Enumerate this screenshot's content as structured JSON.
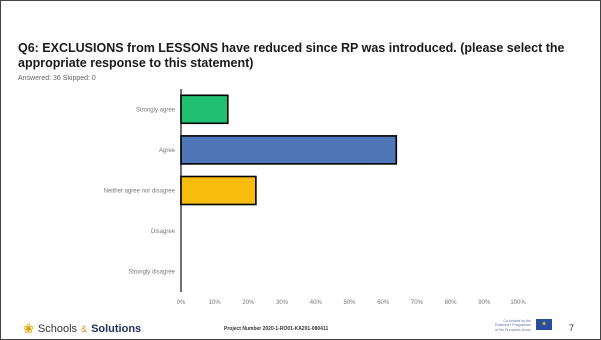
{
  "title": "Q6: EXCLUSIONS from LESSONS have reduced since RP was introduced. (please select the appropriate response to this statement)",
  "meta": "Answered: 36 Skipped: 0",
  "chart_data": {
    "type": "bar",
    "orientation": "horizontal",
    "categories": [
      "Strongly agree",
      "Agree",
      "Neither agree nor disagree",
      "Disagree",
      "Strongly disagree"
    ],
    "values": [
      13.89,
      63.89,
      22.22,
      0,
      0
    ],
    "colors": [
      "#20c070",
      "#4f76b6",
      "#f8bd0c",
      "#999999",
      "#999999"
    ],
    "xlim": [
      0,
      100
    ],
    "xticks": [
      "0%",
      "10%",
      "20%",
      "30%",
      "40%",
      "50%",
      "60%",
      "70%",
      "80%",
      "90%",
      "100%"
    ],
    "grid": false
  },
  "footer": {
    "logo_icon": "flower-icon",
    "logo_part1": "Schools",
    "logo_amp": "&",
    "logo_part2": "Solutions",
    "project": "Project Number 2020-1-RO01-KA201-080411",
    "eu_line1": "Co-funded by the",
    "eu_line2": "Erasmus+ Programme",
    "eu_line3": "of the European Union",
    "page": "7"
  }
}
